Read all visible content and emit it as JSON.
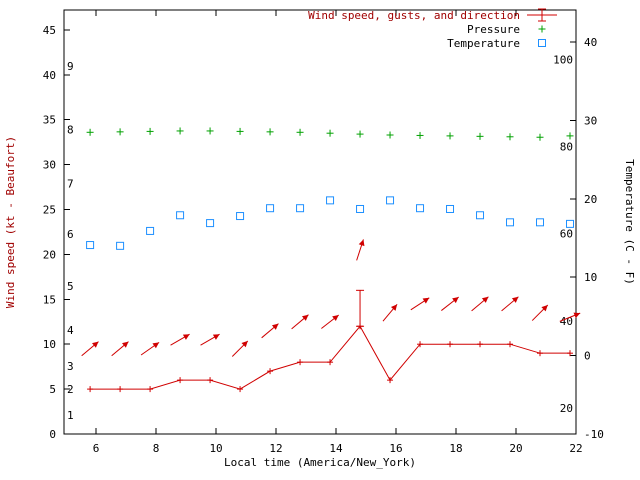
{
  "chart_data": {
    "type": "line",
    "legend": [
      {
        "label": "Wind speed, gusts, and direction",
        "marker": "errorbar-line",
        "color": "#d00000",
        "text_color": "#a00000"
      },
      {
        "label": "Pressure",
        "marker": "plus",
        "color": "#00a000",
        "text_color": "#000000"
      },
      {
        "label": "Temperature",
        "marker": "square-open",
        "color": "#1e90ff",
        "text_color": "#000000"
      }
    ],
    "axes": {
      "x": {
        "label": "Local time (America/New_York)",
        "color": "#000000",
        "min": 4.93,
        "max": 22,
        "ticks": [
          6,
          8,
          10,
          12,
          14,
          16,
          18,
          20,
          22
        ]
      },
      "y_left": {
        "label": "Wind speed (kt - Beaufort)",
        "color": "#a00000",
        "min": 0,
        "max": 47.22,
        "ticks": [
          0,
          5,
          10,
          15,
          20,
          25,
          30,
          35,
          40,
          45
        ],
        "beaufort_labels": [
          {
            "text": "1",
            "kt": 2.1
          },
          {
            "text": "2",
            "kt": 5.0
          },
          {
            "text": "3",
            "kt": 7.6
          },
          {
            "text": "4",
            "kt": 11.6
          },
          {
            "text": "5",
            "kt": 16.5
          },
          {
            "text": "6",
            "kt": 22.3
          },
          {
            "text": "7",
            "kt": 27.9
          },
          {
            "text": "8",
            "kt": 33.9
          },
          {
            "text": "9",
            "kt": 41.0
          }
        ]
      },
      "y_right": {
        "label": "Temperature (C - F)",
        "color": "#000000",
        "min_c": -10,
        "max_c": 44.08,
        "ticks_c": [
          -10,
          0,
          10,
          20,
          30,
          40
        ],
        "fahrenheit_labels": [
          {
            "text": "20",
            "f": 20
          },
          {
            "text": "40",
            "f": 40
          },
          {
            "text": "60",
            "f": 60
          },
          {
            "text": "80",
            "f": 80
          },
          {
            "text": "100",
            "f": 100
          }
        ]
      }
    },
    "x": [
      5.8,
      6.8,
      7.8,
      8.8,
      9.8,
      10.8,
      11.8,
      12.8,
      13.8,
      14.8,
      15.8,
      16.8,
      17.8,
      18.8,
      19.8,
      20.8,
      21.8
    ],
    "series": [
      {
        "name": "Wind speed, gusts, and direction",
        "color": "#d00000",
        "speed_kt": [
          5,
          5,
          5,
          6,
          6,
          5,
          7,
          8,
          8,
          12,
          6,
          10,
          10,
          10,
          10,
          9,
          9
        ],
        "gust_kt": [
          5,
          5,
          5,
          6,
          6,
          5,
          7,
          8,
          8,
          16,
          6,
          10,
          10,
          10,
          10,
          9,
          9
        ],
        "arrow_y_kt": [
          9.5,
          9.5,
          9.5,
          10.5,
          10.5,
          9.5,
          11.5,
          12.5,
          12.5,
          20.5,
          13.5,
          14.5,
          14.5,
          14.5,
          14.5,
          13.5,
          13
        ],
        "arrow_dir_deg": [
          40,
          40,
          35,
          30,
          30,
          45,
          40,
          40,
          38,
          72,
          50,
          33,
          38,
          40,
          40,
          45,
          22
        ]
      },
      {
        "name": "Pressure",
        "color": "#00a000",
        "values_left_axis": [
          33.6,
          33.65,
          33.7,
          33.75,
          33.75,
          33.7,
          33.65,
          33.6,
          33.5,
          33.4,
          33.3,
          33.25,
          33.2,
          33.15,
          33.1,
          33.05,
          33.2
        ]
      },
      {
        "name": "Temperature",
        "color": "#1e90ff",
        "values_c": [
          14.1,
          14.0,
          15.9,
          17.9,
          16.9,
          17.8,
          18.8,
          18.8,
          19.8,
          18.7,
          19.8,
          18.8,
          18.7,
          17.9,
          17.0,
          17.0,
          16.8
        ]
      }
    ]
  }
}
